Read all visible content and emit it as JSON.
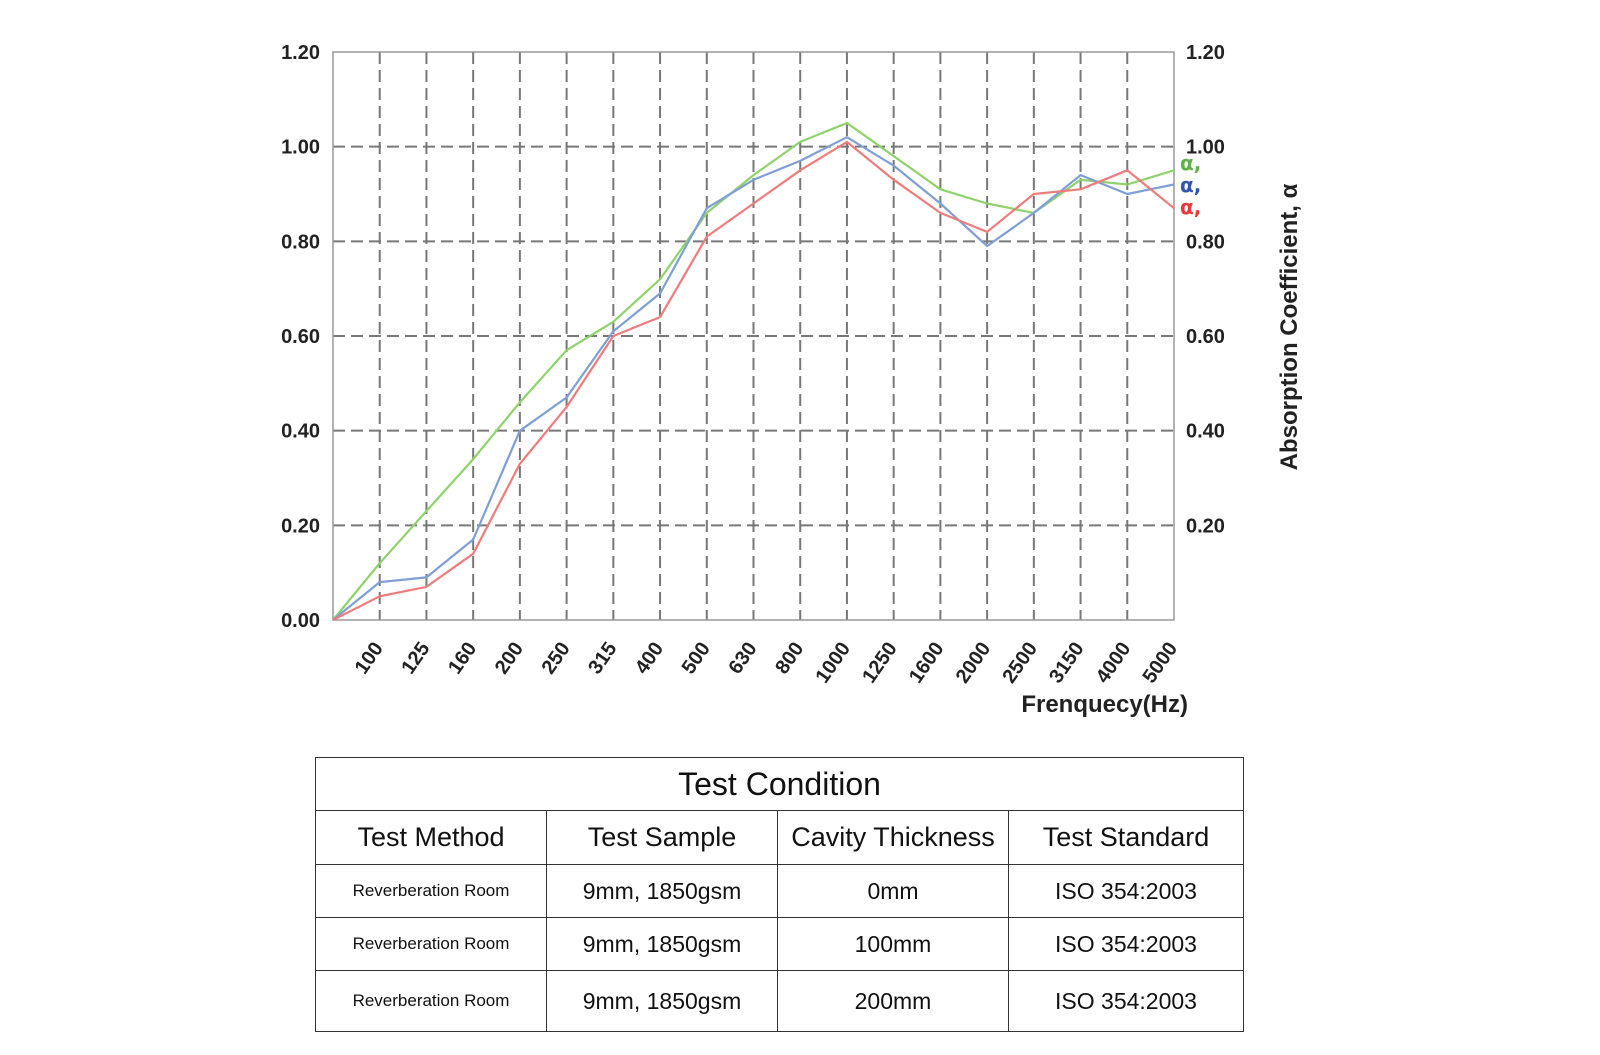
{
  "chart_data": {
    "type": "line",
    "categories": [
      "100",
      "125",
      "160",
      "200",
      "250",
      "315",
      "400",
      "500",
      "630",
      "800",
      "1000",
      "1250",
      "1600",
      "2000",
      "2500",
      "3150",
      "4000",
      "5000"
    ],
    "x_origin_value": 0,
    "ylim": [
      0,
      1.2
    ],
    "y_ticks": [
      "0.00",
      "0.20",
      "0.40",
      "0.60",
      "0.80",
      "1.00",
      "1.20"
    ],
    "y_ticks_right": [
      "0.20",
      "0.40",
      "0.60",
      "0.80",
      "1.00",
      "1.20"
    ],
    "xlabel": "Frenquecy(Hz)",
    "ylabel": "Absorption Coefficient, α",
    "grid": true,
    "series": [
      {
        "name": "α,",
        "color": "#8ed36a",
        "values": [
          0.12,
          0.23,
          0.34,
          0.46,
          0.57,
          0.63,
          0.72,
          0.86,
          0.94,
          1.01,
          1.05,
          0.98,
          0.91,
          0.88,
          0.86,
          0.93,
          0.92,
          0.95
        ]
      },
      {
        "name": "α,",
        "color": "#7e9fd6",
        "values": [
          0.08,
          0.09,
          0.17,
          0.4,
          0.47,
          0.61,
          0.69,
          0.87,
          0.93,
          0.97,
          1.02,
          0.96,
          0.88,
          0.79,
          0.86,
          0.94,
          0.9,
          0.92
        ]
      },
      {
        "name": "α,",
        "color": "#f07b7b",
        "values": [
          0.05,
          0.07,
          0.14,
          0.33,
          0.45,
          0.6,
          0.64,
          0.81,
          0.88,
          0.95,
          1.01,
          0.93,
          0.86,
          0.82,
          0.9,
          0.91,
          0.95,
          0.87
        ]
      }
    ],
    "legend_colors": [
      "#5db24a",
      "#2f55b0",
      "#e53a3a"
    ],
    "legend_placement": "right"
  },
  "table": {
    "title": "Test Condition",
    "headers": [
      "Test Method",
      "Test Sample",
      "Cavity Thickness",
      "Test Standard"
    ],
    "rows": [
      [
        "Reverberation Room",
        "9mm, 1850gsm",
        "0mm",
        "ISO  354:2003"
      ],
      [
        "Reverberation Room",
        "9mm, 1850gsm",
        "100mm",
        "ISO  354:2003"
      ],
      [
        "Reverberation Room",
        "9mm, 1850gsm",
        "200mm",
        "ISO  354:2003"
      ]
    ]
  }
}
